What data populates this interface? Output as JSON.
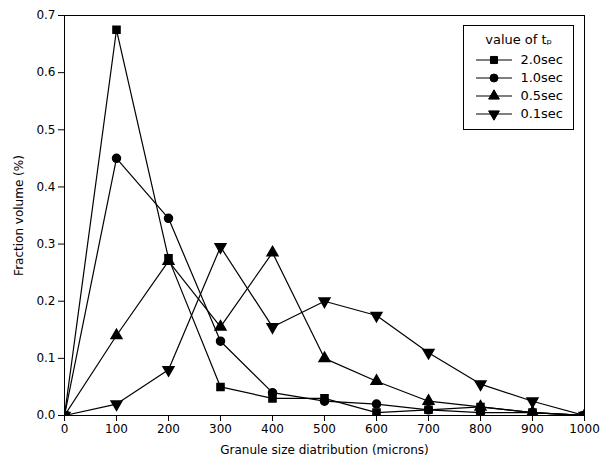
{
  "chart_data": {
    "type": "line",
    "xlabel": "Granule size diatribution (microns)",
    "ylabel": "Fraction volume (%)",
    "legend_title": "value of tₚ",
    "legend": "upper right",
    "color": "#000000",
    "grid": false,
    "xlim": [
      0,
      1000
    ],
    "ylim": [
      0.0,
      0.7
    ],
    "xticks": [
      0,
      100,
      200,
      300,
      400,
      500,
      600,
      700,
      800,
      900,
      1000
    ],
    "yticks": [
      {
        "value": 0,
        "label": "0.0"
      },
      0.1,
      0.2,
      0.3,
      0.4,
      0.5,
      0.6,
      0.7
    ],
    "x": [
      0,
      100,
      200,
      300,
      400,
      500,
      600,
      700,
      800,
      900,
      1000
    ],
    "series": [
      {
        "name": "2.0sec",
        "marker": "square",
        "values": [
          0.0,
          0.675,
          0.275,
          0.05,
          0.03,
          0.03,
          0.005,
          0.01,
          0.015,
          0.005,
          0.0
        ]
      },
      {
        "name": "1.0sec",
        "marker": "circle",
        "values": [
          0.0,
          0.45,
          0.345,
          0.13,
          0.04,
          0.025,
          0.02,
          0.01,
          0.005,
          0.005,
          0.0
        ]
      },
      {
        "name": "0.5sec",
        "marker": "triangle-up",
        "values": [
          0.0,
          0.14,
          0.27,
          0.155,
          0.285,
          0.1,
          0.06,
          0.025,
          0.015,
          0.005,
          0.0
        ]
      },
      {
        "name": "0.1sec",
        "marker": "triangle-down",
        "values": [
          0.0,
          0.02,
          0.08,
          0.295,
          0.155,
          0.2,
          0.175,
          0.11,
          0.055,
          0.025,
          0.0
        ]
      }
    ]
  }
}
